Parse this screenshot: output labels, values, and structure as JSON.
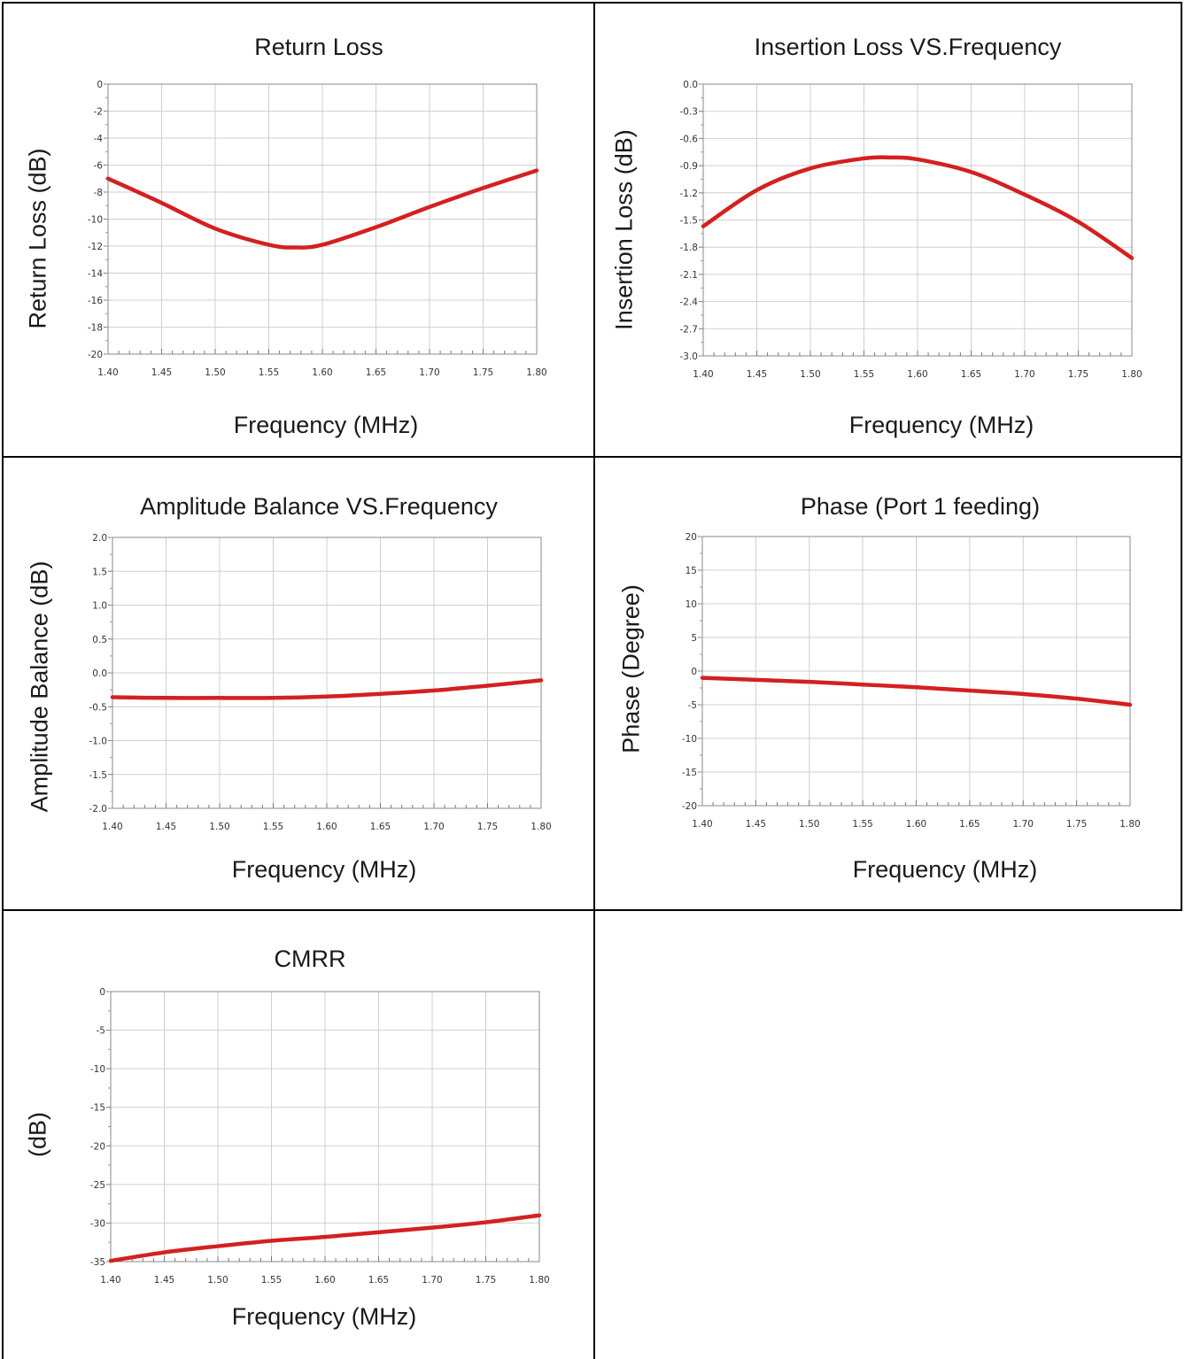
{
  "charts": [
    {
      "chart_data": {
        "type": "line",
        "title": "Return Loss",
        "xlabel": "Frequency (MHz)",
        "ylabel": "Return Loss (dB)",
        "xlim": [
          1.4,
          1.8
        ],
        "ylim": [
          -20,
          0
        ],
        "xticks": [
          "1.40",
          "1.45",
          "1.50",
          "1.55",
          "1.60",
          "1.65",
          "1.70",
          "1.75",
          "1.80"
        ],
        "yticks": [
          "0",
          "-2",
          "-4",
          "-6",
          "-8",
          "-10",
          "-12",
          "-14",
          "-16",
          "-18",
          "-20"
        ],
        "ytick_values": [
          0,
          -2,
          -4,
          -6,
          -8,
          -10,
          -12,
          -14,
          -16,
          -18,
          -20
        ],
        "grid": true,
        "series": [
          {
            "color": "#d42020",
            "x": [
              1.4,
              1.45,
              1.5,
              1.55,
              1.575,
              1.6,
              1.65,
              1.7,
              1.75,
              1.8
            ],
            "y": [
              -7.0,
              -8.8,
              -10.7,
              -11.9,
              -12.1,
              -11.9,
              -10.6,
              -9.1,
              -7.7,
              -6.4
            ]
          }
        ]
      }
    },
    {
      "chart_data": {
        "type": "line",
        "title": "Insertion Loss VS.Frequency",
        "xlabel": "Frequency (MHz)",
        "ylabel": "Insertion Loss (dB)",
        "xlim": [
          1.4,
          1.8
        ],
        "ylim": [
          -3.0,
          0.0
        ],
        "xticks": [
          "1.40",
          "1.45",
          "1.50",
          "1.55",
          "1.60",
          "1.65",
          "1.70",
          "1.75",
          "1.80"
        ],
        "yticks": [
          "0.0",
          "-0.3",
          "-0.6",
          "-0.9",
          "-1.2",
          "-1.5",
          "-1.8",
          "-2.1",
          "-2.4",
          "-2.7",
          "-3.0"
        ],
        "ytick_values": [
          0.0,
          -0.3,
          -0.6,
          -0.9,
          -1.2,
          -1.5,
          -1.8,
          -2.1,
          -2.4,
          -2.7,
          -3.0
        ],
        "grid": true,
        "series": [
          {
            "color": "#d42020",
            "x": [
              1.4,
              1.45,
              1.5,
              1.55,
              1.575,
              1.6,
              1.65,
              1.7,
              1.75,
              1.8
            ],
            "y": [
              -1.57,
              -1.17,
              -0.93,
              -0.82,
              -0.81,
              -0.83,
              -0.97,
              -1.22,
              -1.52,
              -1.92
            ]
          }
        ]
      }
    },
    {
      "chart_data": {
        "type": "line",
        "title": "Amplitude Balance VS.Frequency",
        "xlabel": "Frequency (MHz)",
        "ylabel": "Amplitude Balance (dB)",
        "xlim": [
          1.4,
          1.8
        ],
        "ylim": [
          -2.0,
          2.0
        ],
        "xticks": [
          "1.40",
          "1.45",
          "1.50",
          "1.55",
          "1.60",
          "1.65",
          "1.70",
          "1.75",
          "1.80"
        ],
        "yticks": [
          "2.0",
          "1.5",
          "1.0",
          "0.5",
          "0.0",
          "-0.5",
          "-1.0",
          "-1.5",
          "-2.0"
        ],
        "ytick_values": [
          2.0,
          1.5,
          1.0,
          0.5,
          0.0,
          -0.5,
          -1.0,
          -1.5,
          -2.0
        ],
        "grid": true,
        "series": [
          {
            "color": "#d42020",
            "x": [
              1.4,
              1.45,
              1.5,
              1.55,
              1.6,
              1.65,
              1.7,
              1.75,
              1.8
            ],
            "y": [
              -0.36,
              -0.37,
              -0.37,
              -0.37,
              -0.35,
              -0.31,
              -0.26,
              -0.19,
              -0.11
            ]
          }
        ]
      }
    },
    {
      "chart_data": {
        "type": "line",
        "title": "Phase (Port 1 feeding)",
        "xlabel": "Frequency (MHz)",
        "ylabel": "Phase (Degree)",
        "xlim": [
          1.4,
          1.8
        ],
        "ylim": [
          -20,
          20
        ],
        "xticks": [
          "1.40",
          "1.45",
          "1.50",
          "1.55",
          "1.60",
          "1.65",
          "1.70",
          "1.75",
          "1.80"
        ],
        "yticks": [
          "20",
          "15",
          "10",
          "5",
          "0",
          "-5",
          "-10",
          "-15",
          "-20"
        ],
        "ytick_values": [
          20,
          15,
          10,
          5,
          0,
          -5,
          -10,
          -15,
          -20
        ],
        "grid": true,
        "series": [
          {
            "color": "#d42020",
            "x": [
              1.4,
              1.45,
              1.5,
              1.55,
              1.6,
              1.65,
              1.7,
              1.75,
              1.8
            ],
            "y": [
              -1.0,
              -1.3,
              -1.6,
              -2.0,
              -2.4,
              -2.9,
              -3.4,
              -4.1,
              -5.0
            ]
          }
        ]
      }
    },
    {
      "chart_data": {
        "type": "line",
        "title": "CMRR",
        "xlabel": "Frequency (MHz)",
        "ylabel": "(dB)",
        "xlim": [
          1.4,
          1.8
        ],
        "ylim": [
          -35,
          0
        ],
        "xticks": [
          "1.40",
          "1.45",
          "1.50",
          "1.55",
          "1.60",
          "1.65",
          "1.70",
          "1.75",
          "1.80"
        ],
        "yticks": [
          "0",
          "-5",
          "-10",
          "-15",
          "-20",
          "-25",
          "-30",
          "-35"
        ],
        "ytick_values": [
          0,
          -5,
          -10,
          -15,
          -20,
          -25,
          -30,
          -35
        ],
        "grid": true,
        "series": [
          {
            "color": "#d42020",
            "x": [
              1.4,
              1.45,
              1.5,
              1.55,
              1.6,
              1.65,
              1.7,
              1.75,
              1.8
            ],
            "y": [
              -34.9,
              -33.8,
              -33.0,
              -32.3,
              -31.8,
              -31.2,
              -30.6,
              -29.9,
              -29.0
            ]
          }
        ]
      }
    }
  ]
}
